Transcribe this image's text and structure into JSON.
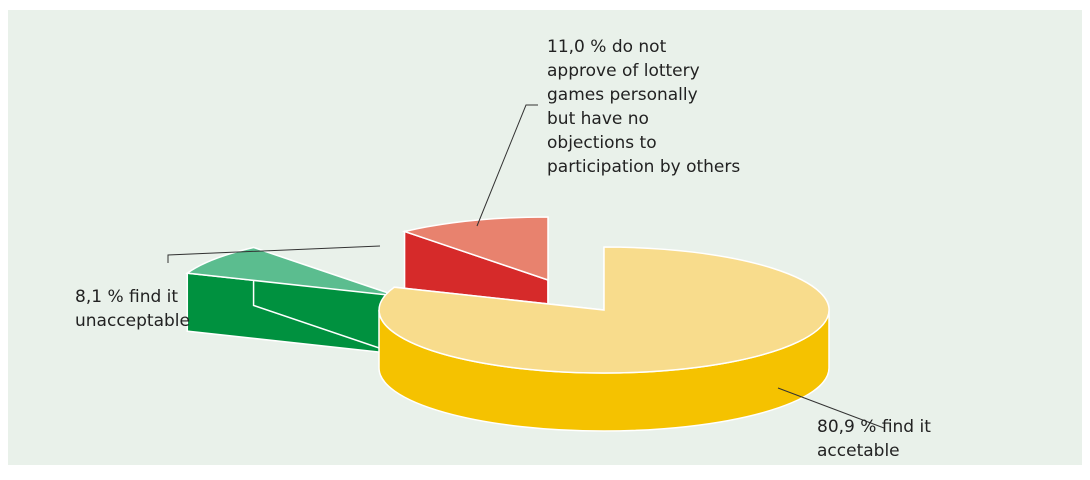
{
  "chart_data": {
    "type": "pie",
    "title": "",
    "slices": [
      {
        "label": "find it accetable",
        "value": 80.9,
        "display": "80,9 %",
        "top_color": "#f8dc8c",
        "side_color": "#f5c200"
      },
      {
        "label": "find it unacceptable",
        "value": 8.1,
        "display": "8,1 %",
        "top_color": "#5bbd8f",
        "side_color": "#00913f"
      },
      {
        "label": "do not approve of lottery games personally but have no objections to participation by others",
        "value": 11.0,
        "display": "11,0 %",
        "top_color": "#e8826e",
        "side_color": "#d62a2a"
      }
    ],
    "callouts": [
      [
        "80,9 % find it",
        "accetable"
      ],
      [
        "8,1 % find it",
        "unacceptable"
      ],
      [
        "11,0 % do not",
        "approve of lottery",
        "games personally",
        "but have no",
        "objections to",
        "participation by others"
      ]
    ]
  }
}
